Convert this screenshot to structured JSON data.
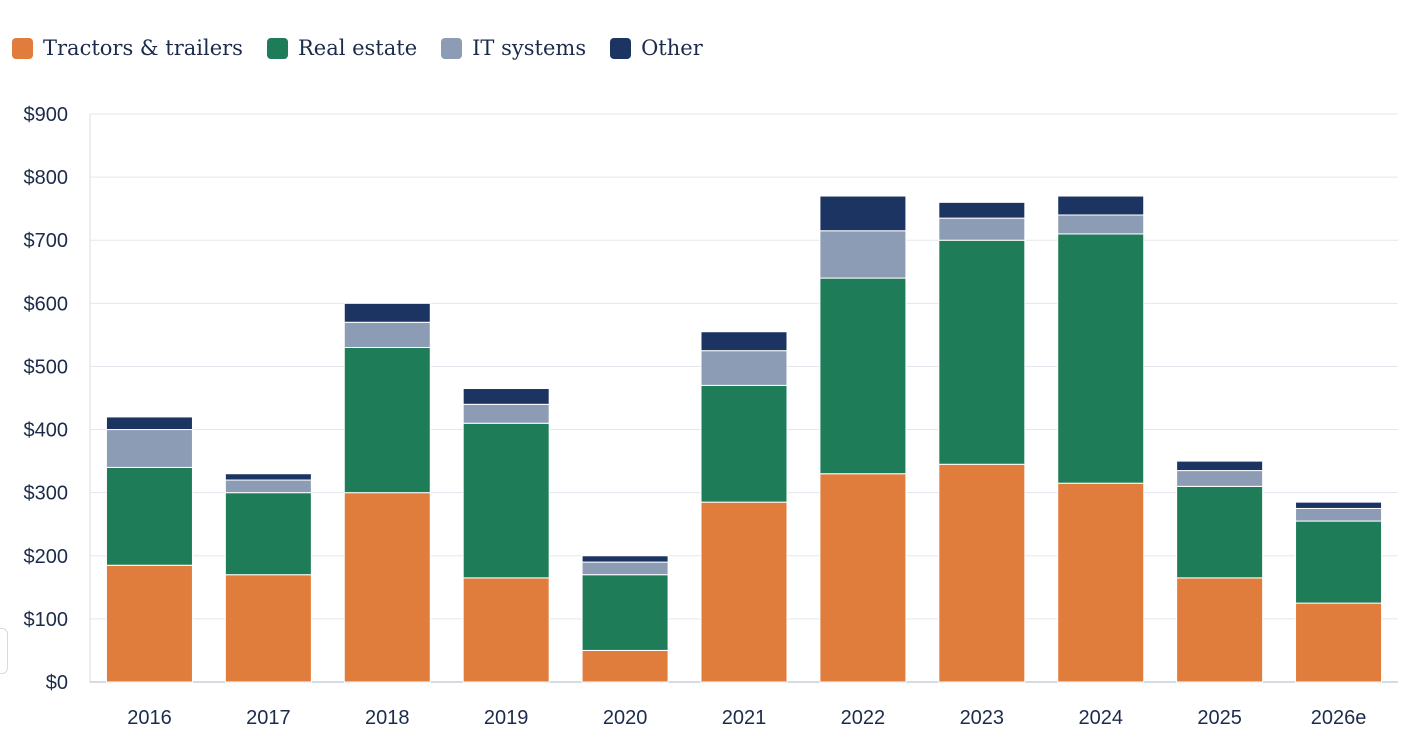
{
  "chart_data": {
    "type": "bar",
    "stacked": true,
    "title": "",
    "xlabel": "",
    "ylabel": "",
    "categories": [
      "2016",
      "2017",
      "2018",
      "2019",
      "2020",
      "2021",
      "2022",
      "2023",
      "2024",
      "2025",
      "2026e"
    ],
    "series": [
      {
        "name": "Tractors & trailers",
        "color": "#e07c3c",
        "values": [
          185,
          170,
          300,
          165,
          50,
          285,
          330,
          345,
          315,
          165,
          125
        ]
      },
      {
        "name": "Real estate",
        "color": "#1e7d58",
        "values": [
          155,
          130,
          230,
          245,
          120,
          185,
          310,
          355,
          395,
          145,
          130
        ]
      },
      {
        "name": "IT systems",
        "color": "#8d9cb5",
        "values": [
          60,
          20,
          40,
          30,
          20,
          55,
          75,
          35,
          30,
          25,
          20
        ]
      },
      {
        "name": "Other",
        "color": "#1c3461",
        "values": [
          20,
          10,
          30,
          25,
          10,
          30,
          55,
          25,
          30,
          15,
          10
        ]
      }
    ],
    "ylim": [
      0,
      900
    ],
    "yticks": [
      0,
      100,
      200,
      300,
      400,
      500,
      600,
      700,
      800,
      900
    ],
    "ytick_labels": [
      "$0",
      "$100",
      "$200",
      "$300",
      "$400",
      "$500",
      "$600",
      "$700",
      "$800",
      "$900"
    ],
    "grid": true,
    "legend_position": "top-left"
  }
}
